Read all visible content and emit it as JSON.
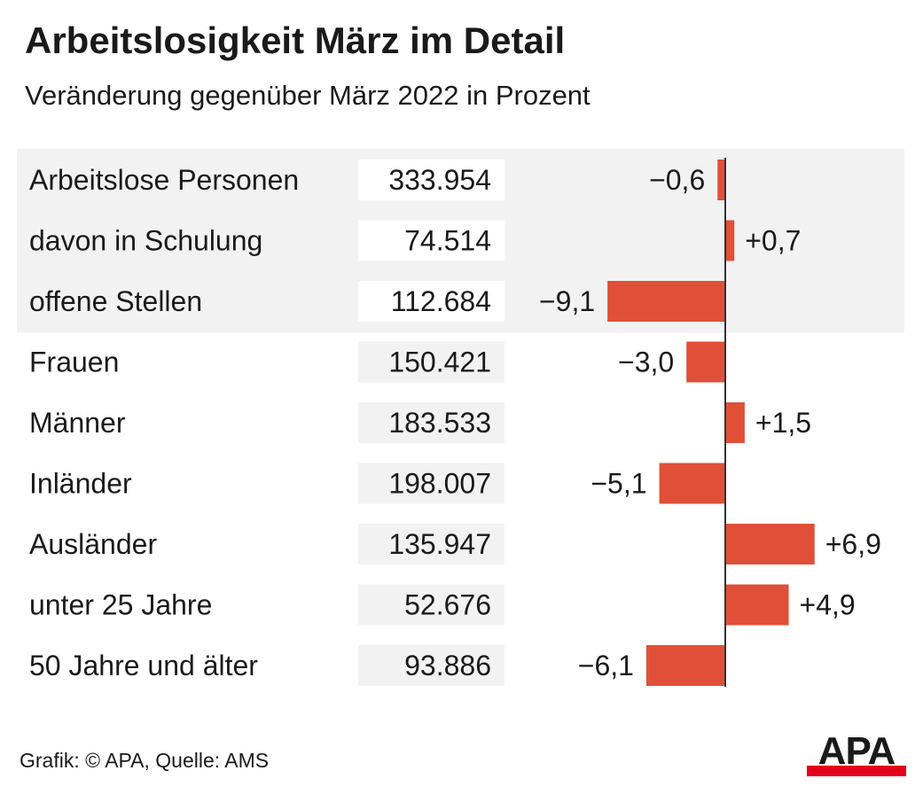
{
  "title": "Arbeitslosigkeit März im Detail",
  "subtitle": "Veränderung gegenüber März 2022 in Prozent",
  "source": "Grafik: © APA, Quelle: AMS",
  "logo_text": "APA",
  "colors": {
    "bar": "#e05038",
    "panel": "#f2f2f3",
    "value_box_on_panel": "#ffffff",
    "value_box": "#f2f2f3",
    "axis": "#333333",
    "logo_red": "#e3001b"
  },
  "chart_data": {
    "type": "bar",
    "orientation": "horizontal",
    "title": "Arbeitslosigkeit März im Detail",
    "subtitle": "Veränderung gegenüber März 2022 in Prozent",
    "categories": [
      "Arbeitslose Personen",
      "davon in Schulung",
      "offene Stellen",
      "Frauen",
      "Männer",
      "Inländer",
      "Ausländer",
      "unter 25 Jahre",
      "50 Jahre und älter"
    ],
    "counts": [
      "333.954",
      "74.514",
      "112.684",
      "150.421",
      "183.533",
      "198.007",
      "135.947",
      "52.676",
      "93.886"
    ],
    "values": [
      -0.6,
      0.7,
      -9.1,
      -3.0,
      1.5,
      -5.1,
      6.9,
      4.9,
      -6.1
    ],
    "value_labels": [
      "−0,6",
      "+0,7",
      "−9,1",
      "−3,0",
      "+1,5",
      "−5,1",
      "+6,9",
      "+4,9",
      "−6,1"
    ],
    "highlighted_rows": 3,
    "grid": false
  }
}
